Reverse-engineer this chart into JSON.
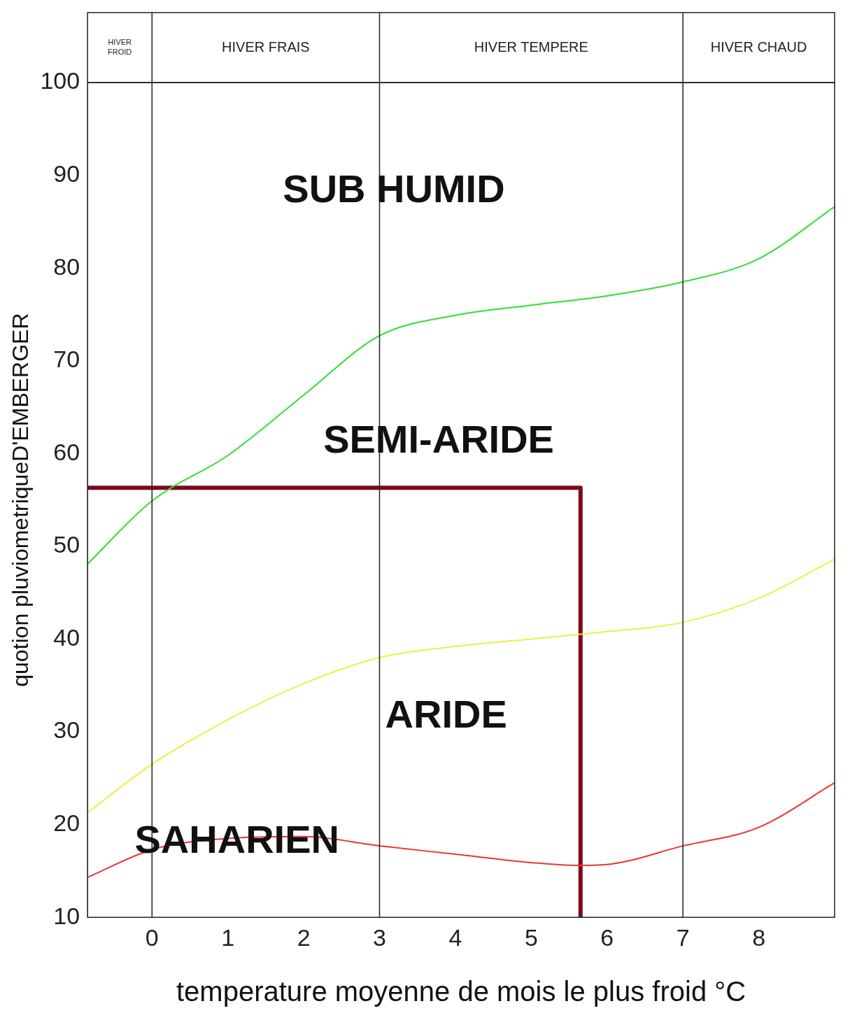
{
  "chart_data": {
    "type": "line",
    "xlabel": "temperature moyenne de mois le plus froid °C",
    "ylabel": "quotion pluviometriqueD'EMBERGER",
    "xlim": [
      -0.85,
      9
    ],
    "xticks": [
      0,
      1,
      2,
      3,
      4,
      5,
      6,
      7,
      8
    ],
    "ylim": [
      10,
      100
    ],
    "yticks": [
      10,
      20,
      30,
      40,
      50,
      60,
      70,
      80,
      90,
      100
    ],
    "grid": false,
    "legend": false,
    "marker": "none",
    "line_style": "solid",
    "series": [
      {
        "color": "#33dd33",
        "x": [
          -0.85,
          0,
          1,
          2,
          3,
          4,
          5,
          6,
          7,
          8,
          9
        ],
        "values": [
          48.1,
          54.9,
          59.8,
          66.3,
          72.7,
          74.9,
          76.0,
          77.0,
          78.5,
          81,
          86.6
        ]
      },
      {
        "color": "#eeee44",
        "x": [
          -0.85,
          0,
          1,
          2,
          3,
          4,
          5,
          6,
          7,
          8,
          9
        ],
        "values": [
          21.3,
          26.5,
          31.3,
          35.2,
          38.0,
          39.2,
          40.0,
          40.8,
          41.8,
          44.4,
          48.6
        ]
      },
      {
        "color": "#ee3333",
        "x": [
          -0.85,
          0,
          1,
          2,
          3,
          4,
          5,
          5.6,
          6,
          7,
          8,
          9
        ],
        "values": [
          14.3,
          17.3,
          18.5,
          18.7,
          17.7,
          16.8,
          15.9,
          15.6,
          15.7,
          17.7,
          19.7,
          24.5
        ]
      },
      {
        "color": "#7b0a1a",
        "x": [
          -0.85,
          5.65,
          5.65
        ],
        "values": [
          56.3,
          56.3,
          10
        ]
      }
    ],
    "ref_lines": [
      {
        "axis": "x",
        "value": 0,
        "color": "#222222"
      },
      {
        "axis": "x",
        "value": 3,
        "color": "#222222"
      },
      {
        "axis": "x",
        "value": 7,
        "color": "#222222"
      }
    ],
    "annotations": [
      "HIVER FROID",
      "HIVER FRAIS",
      "HIVER TEMPERE",
      "HIVER CHAUD",
      "SUB HUMID",
      "SEMI-ARIDE",
      "ARIDE",
      "SAHARIEN"
    ]
  }
}
